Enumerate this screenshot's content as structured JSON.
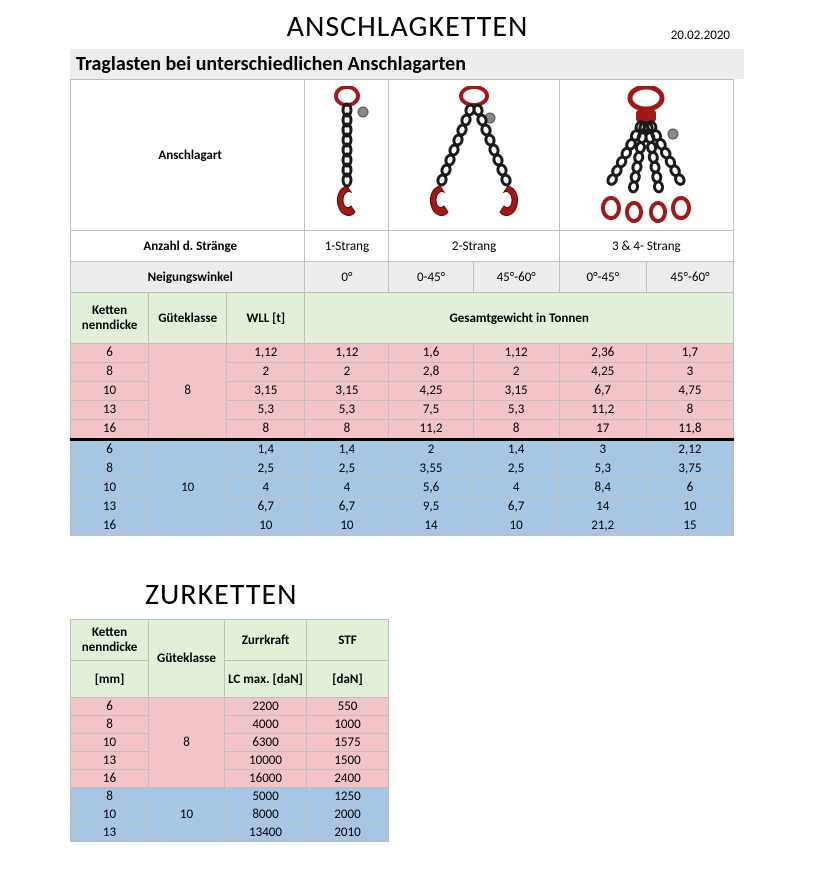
{
  "title1": "ANSCHLAGKETTEN",
  "date": "20.02.2020",
  "section_header": "Traglasten bei unterschiedlichen Anschlagarten",
  "row_labels": {
    "anschlagart": "Anschlagart",
    "anzahl": "Anzahl d. Stränge",
    "neigung": "Neigungswinkel",
    "ketten": "Ketten nenndicke",
    "guete": "Güteklasse",
    "wll": "WLL [t]",
    "gesamt": "Gesamtgewicht in Tonnen"
  },
  "straenge": [
    "1-Strang",
    "2-Strang",
    "3 & 4- Strang"
  ],
  "winkel": [
    "0°",
    "0-45°",
    "45°-60°",
    "0°-45°",
    "45°-60°"
  ],
  "guete_labels": [
    "8",
    "10"
  ],
  "table1_g8": [
    {
      "d": "6",
      "vals": [
        "1,12",
        "1,12",
        "1,6",
        "1,12",
        "2,36",
        "1,7"
      ]
    },
    {
      "d": "8",
      "vals": [
        "2",
        "2",
        "2,8",
        "2",
        "4,25",
        "3"
      ]
    },
    {
      "d": "10",
      "vals": [
        "3,15",
        "3,15",
        "4,25",
        "3,15",
        "6,7",
        "4,75"
      ]
    },
    {
      "d": "13",
      "vals": [
        "5,3",
        "5,3",
        "7,5",
        "5,3",
        "11,2",
        "8"
      ]
    },
    {
      "d": "16",
      "vals": [
        "8",
        "8",
        "11,2",
        "8",
        "17",
        "11,8"
      ]
    }
  ],
  "table1_g10": [
    {
      "d": "6",
      "vals": [
        "1,4",
        "1,4",
        "2",
        "1,4",
        "3",
        "2,12"
      ]
    },
    {
      "d": "8",
      "vals": [
        "2,5",
        "2,5",
        "3,55",
        "2,5",
        "5,3",
        "3,75"
      ]
    },
    {
      "d": "10",
      "vals": [
        "4",
        "4",
        "5,6",
        "4",
        "8,4",
        "6"
      ]
    },
    {
      "d": "13",
      "vals": [
        "6,7",
        "6,7",
        "9,5",
        "6,7",
        "14",
        "10"
      ]
    },
    {
      "d": "16",
      "vals": [
        "10",
        "10",
        "14",
        "10",
        "21,2",
        "15"
      ]
    }
  ],
  "title2": "ZURKETTEN",
  "table2_headers": {
    "ketten": "Ketten nenndicke",
    "mm": "[mm]",
    "guete": "Güteklasse",
    "zurr": "Zurrkraft",
    "lc": "LC max. [daN]",
    "stf": "STF",
    "dan": "[daN]"
  },
  "table2_g8": [
    {
      "d": "6",
      "lc": "2200",
      "stf": "550"
    },
    {
      "d": "8",
      "lc": "4000",
      "stf": "1000"
    },
    {
      "d": "10",
      "lc": "6300",
      "stf": "1575"
    },
    {
      "d": "13",
      "lc": "10000",
      "stf": "1500"
    },
    {
      "d": "16",
      "lc": "16000",
      "stf": "2400"
    }
  ],
  "table2_g10": [
    {
      "d": "8",
      "lc": "5000",
      "stf": "1250"
    },
    {
      "d": "10",
      "lc": "8000",
      "stf": "2000"
    },
    {
      "d": "13",
      "lc": "13400",
      "stf": "2010"
    }
  ],
  "colors": {
    "pink": "#f2c3c7",
    "blue": "#a6c6e4",
    "green_hdr": "#e2efd9",
    "grey_hdr": "#ededed",
    "chain_red": "#a01818",
    "chain_black": "#1a1a1a"
  },
  "col_widths_main": [
    78,
    78,
    78,
    82,
    84,
    84,
    88,
    88
  ],
  "col_widths_second": [
    78,
    78,
    80,
    80
  ]
}
